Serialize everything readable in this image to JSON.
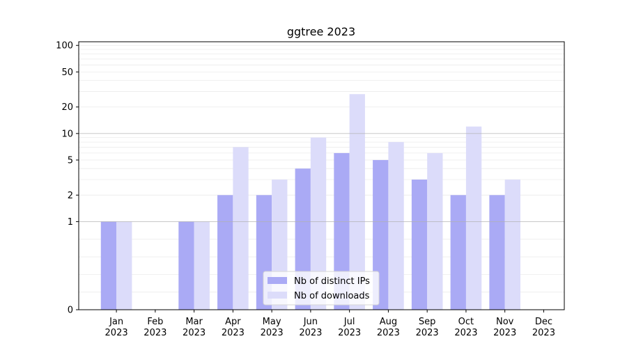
{
  "chart_data": {
    "type": "bar",
    "title": "ggtree 2023",
    "xlabel": "",
    "ylabel": "",
    "yscale": "symlog",
    "ylim": [
      0,
      110
    ],
    "categories": [
      [
        "Jan",
        "2023"
      ],
      [
        "Feb",
        "2023"
      ],
      [
        "Mar",
        "2023"
      ],
      [
        "Apr",
        "2023"
      ],
      [
        "May",
        "2023"
      ],
      [
        "Jun",
        "2023"
      ],
      [
        "Jul",
        "2023"
      ],
      [
        "Aug",
        "2023"
      ],
      [
        "Sep",
        "2023"
      ],
      [
        "Oct",
        "2023"
      ],
      [
        "Nov",
        "2023"
      ],
      [
        "Dec",
        "2023"
      ]
    ],
    "yticks": [
      0,
      1,
      2,
      5,
      10,
      20,
      50,
      100
    ],
    "grid": true,
    "legend_position": "bottom-center",
    "series": [
      {
        "name": "Nb of distinct IPs",
        "color": "#aaaaf5",
        "values": [
          1,
          0,
          1,
          2,
          2,
          4,
          6,
          5,
          3,
          2,
          2,
          0
        ]
      },
      {
        "name": "Nb of downloads",
        "color": "#dcdcfa",
        "values": [
          1,
          0,
          1,
          7,
          3,
          9,
          28,
          8,
          6,
          12,
          3,
          0
        ]
      }
    ]
  }
}
